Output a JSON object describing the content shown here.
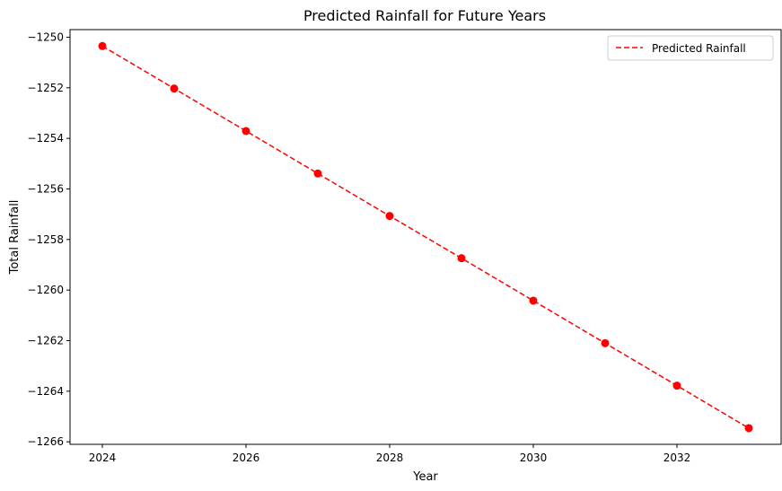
{
  "chart_data": {
    "type": "line",
    "title": "Predicted Rainfall for Future Years",
    "xlabel": "Year",
    "ylabel": "Total Rainfall",
    "xlim": [
      2023.55,
      2033.45
    ],
    "ylim": [
      -1266.1,
      -1249.7
    ],
    "xticks": [
      2024,
      2026,
      2028,
      2030,
      2032
    ],
    "yticks": [
      -1266,
      -1264,
      -1262,
      -1260,
      -1258,
      -1256,
      -1254,
      -1252,
      -1250
    ],
    "series": [
      {
        "name": "Predicted Rainfall",
        "color": "#ff0000",
        "line_style": "dashed",
        "marker": "circle",
        "x": [
          2024,
          2025,
          2026,
          2027,
          2028,
          2029,
          2030,
          2031,
          2032,
          2033
        ],
        "y": [
          -1250.35,
          -1252.03,
          -1253.71,
          -1255.39,
          -1257.07,
          -1258.74,
          -1260.42,
          -1262.1,
          -1263.78,
          -1265.46
        ]
      }
    ],
    "legend": {
      "position": "top-right"
    },
    "grid": false
  }
}
